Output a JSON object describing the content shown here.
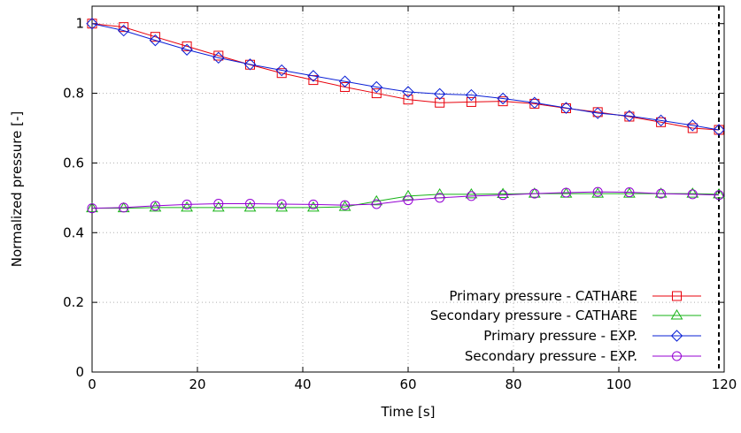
{
  "chart_data": {
    "type": "line",
    "title": "",
    "xlabel": "Time [s]",
    "ylabel": "Normalized pressure [-]",
    "xlim": [
      0,
      120
    ],
    "ylim": [
      0,
      1.05
    ],
    "xticks": [
      "0",
      "20",
      "40",
      "60",
      "80",
      "100",
      "120"
    ],
    "yticks": [
      "0",
      "0.2",
      "0.4",
      "0.6",
      "0.8",
      "1"
    ],
    "grid": true,
    "legend_position": "bottom-right",
    "vline": {
      "x": 119,
      "style": "dashed",
      "color": "#000000"
    },
    "series": [
      {
        "name": "Primary pressure - CATHARE",
        "color": "#e8000b",
        "marker": "square",
        "x": [
          0,
          6,
          12,
          18,
          24,
          30,
          36,
          42,
          48,
          54,
          60,
          66,
          72,
          78,
          84,
          90,
          96,
          102,
          108,
          114,
          119
        ],
        "y": [
          1.0,
          0.99,
          0.962,
          0.935,
          0.908,
          0.882,
          0.858,
          0.838,
          0.818,
          0.8,
          0.782,
          0.773,
          0.775,
          0.777,
          0.77,
          0.757,
          0.746,
          0.733,
          0.717,
          0.7,
          0.695
        ]
      },
      {
        "name": "Secondary pressure - CATHARE",
        "color": "#16b316",
        "marker": "triangle",
        "x": [
          0,
          6,
          12,
          18,
          24,
          30,
          36,
          42,
          48,
          54,
          60,
          66,
          72,
          78,
          84,
          90,
          96,
          102,
          108,
          114,
          119
        ],
        "y": [
          0.47,
          0.47,
          0.472,
          0.472,
          0.472,
          0.472,
          0.472,
          0.472,
          0.474,
          0.49,
          0.505,
          0.51,
          0.51,
          0.511,
          0.512,
          0.512,
          0.512,
          0.512,
          0.512,
          0.512,
          0.51
        ]
      },
      {
        "name": "Primary pressure - EXP.",
        "color": "#0a1fd6",
        "marker": "diamond",
        "x": [
          0,
          6,
          12,
          18,
          24,
          30,
          36,
          42,
          48,
          54,
          60,
          66,
          72,
          78,
          84,
          90,
          96,
          102,
          108,
          114,
          119
        ],
        "y": [
          1.0,
          0.98,
          0.952,
          0.925,
          0.902,
          0.883,
          0.866,
          0.85,
          0.834,
          0.818,
          0.804,
          0.798,
          0.795,
          0.785,
          0.773,
          0.758,
          0.743,
          0.735,
          0.722,
          0.708,
          0.695
        ]
      },
      {
        "name": "Secondary pressure - EXP.",
        "color": "#9400d3",
        "marker": "circle",
        "x": [
          0,
          6,
          12,
          18,
          24,
          30,
          36,
          42,
          48,
          54,
          60,
          66,
          72,
          78,
          84,
          90,
          96,
          102,
          108,
          114,
          119
        ],
        "y": [
          0.47,
          0.472,
          0.477,
          0.481,
          0.483,
          0.483,
          0.482,
          0.481,
          0.479,
          0.482,
          0.493,
          0.5,
          0.505,
          0.508,
          0.512,
          0.515,
          0.517,
          0.516,
          0.512,
          0.51,
          0.508
        ]
      }
    ]
  }
}
